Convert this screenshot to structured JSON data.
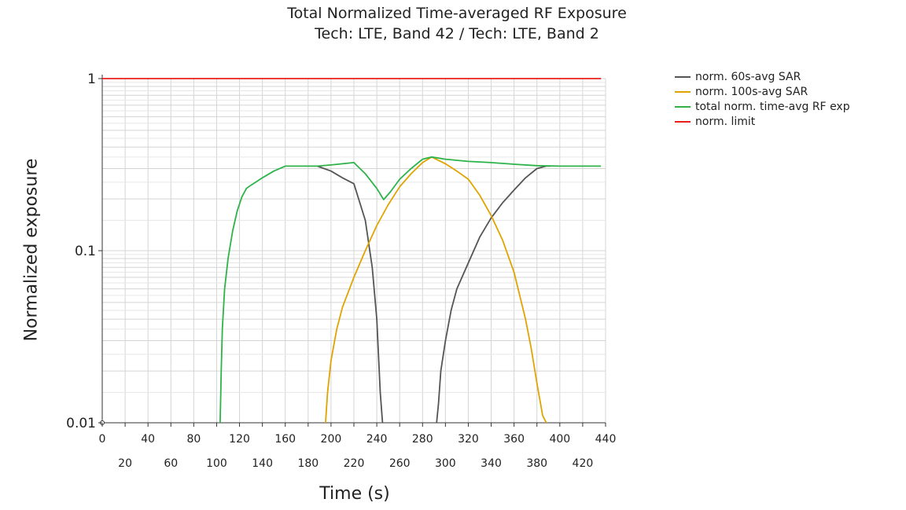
{
  "chart_data": {
    "type": "line",
    "title": "Total Normalized Time-averaged RF Exposure",
    "subtitle": "Tech: LTE, Band 42 / Tech: LTE, Band 2",
    "xlabel": "Time (s)",
    "ylabel": "Normalized exposure",
    "yscale": "log",
    "xlim": [
      0,
      440
    ],
    "ylim": [
      0.01,
      1
    ],
    "x_ticks_row1": [
      0,
      40,
      80,
      120,
      160,
      200,
      240,
      280,
      320,
      360,
      400,
      440
    ],
    "x_ticks_row2": [
      20,
      60,
      100,
      140,
      180,
      220,
      260,
      300,
      340,
      380,
      420
    ],
    "y_ticks": [
      {
        "value": 0.01,
        "label": "0.01"
      },
      {
        "value": 0.1,
        "label": "0.1"
      },
      {
        "value": 1,
        "label": "1"
      }
    ],
    "grid": true,
    "legend_position": "right",
    "series": [
      {
        "name": "norm. 60s-avg SAR",
        "color": "#555555",
        "x": [
          188,
          200,
          210,
          220,
          230,
          236,
          240,
          243,
          245,
          246,
          292,
          294,
          296,
          300,
          305,
          310,
          320,
          330,
          340,
          350,
          360,
          370,
          380,
          388,
          392
        ],
        "y": [
          0.31,
          0.29,
          0.265,
          0.245,
          0.15,
          0.08,
          0.04,
          0.015,
          0.01,
          0.0095,
          0.0095,
          0.013,
          0.02,
          0.03,
          0.045,
          0.06,
          0.085,
          0.12,
          0.155,
          0.19,
          0.225,
          0.265,
          0.3,
          0.31,
          0.31
        ]
      },
      {
        "name": "norm. 100s-avg SAR",
        "color": "#e0a400",
        "x": [
          195,
          197,
          200,
          205,
          210,
          220,
          230,
          240,
          250,
          260,
          270,
          280,
          288,
          300,
          310,
          320,
          330,
          340,
          350,
          360,
          370,
          375,
          380,
          385,
          390,
          392
        ],
        "y": [
          0.0095,
          0.015,
          0.023,
          0.035,
          0.047,
          0.07,
          0.1,
          0.14,
          0.185,
          0.235,
          0.28,
          0.325,
          0.35,
          0.32,
          0.29,
          0.26,
          0.21,
          0.16,
          0.115,
          0.075,
          0.04,
          0.027,
          0.017,
          0.011,
          0.0095,
          0.0095
        ]
      },
      {
        "name": "total norm. time-avg RF exp",
        "color": "#2db34a",
        "x": [
          103,
          104,
          105,
          107,
          110,
          114,
          118,
          122,
          126,
          130,
          140,
          150,
          160,
          170,
          180,
          188,
          200,
          210,
          220,
          230,
          240,
          246,
          252,
          260,
          270,
          280,
          288,
          300,
          320,
          340,
          360,
          380,
          400,
          420,
          436
        ],
        "y": [
          0.0095,
          0.02,
          0.035,
          0.06,
          0.09,
          0.13,
          0.17,
          0.205,
          0.23,
          0.24,
          0.265,
          0.29,
          0.31,
          0.31,
          0.31,
          0.31,
          0.315,
          0.32,
          0.325,
          0.28,
          0.23,
          0.198,
          0.22,
          0.26,
          0.3,
          0.34,
          0.35,
          0.34,
          0.33,
          0.325,
          0.318,
          0.312,
          0.31,
          0.31,
          0.31
        ]
      },
      {
        "name": "norm. limit",
        "color": "#e8201c",
        "x": [
          0,
          436
        ],
        "y": [
          1,
          1
        ]
      }
    ]
  }
}
